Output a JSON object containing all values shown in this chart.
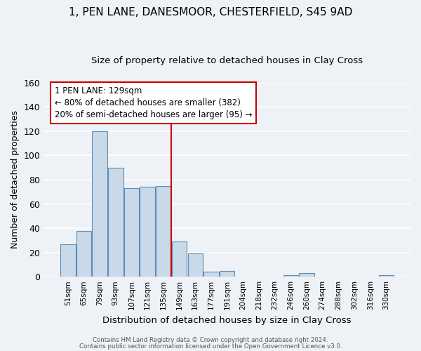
{
  "title": "1, PEN LANE, DANESMOOR, CHESTERFIELD, S45 9AD",
  "subtitle": "Size of property relative to detached houses in Clay Cross",
  "xlabel": "Distribution of detached houses by size in Clay Cross",
  "ylabel": "Number of detached properties",
  "bar_labels": [
    "51sqm",
    "65sqm",
    "79sqm",
    "93sqm",
    "107sqm",
    "121sqm",
    "135sqm",
    "149sqm",
    "163sqm",
    "177sqm",
    "191sqm",
    "204sqm",
    "218sqm",
    "232sqm",
    "246sqm",
    "260sqm",
    "274sqm",
    "288sqm",
    "302sqm",
    "316sqm",
    "330sqm"
  ],
  "bar_values": [
    27,
    38,
    120,
    90,
    73,
    74,
    75,
    29,
    19,
    4,
    5,
    0,
    0,
    0,
    1,
    3,
    0,
    0,
    0,
    0,
    1
  ],
  "bar_color": "#c9d9e8",
  "bar_edge_color": "#5b8db8",
  "ylim": [
    0,
    160
  ],
  "yticks": [
    0,
    20,
    40,
    60,
    80,
    100,
    120,
    140,
    160
  ],
  "vline_x": 6.5,
  "vline_color": "#cc0000",
  "annotation_text": "1 PEN LANE: 129sqm\n← 80% of detached houses are smaller (382)\n20% of semi-detached houses are larger (95) →",
  "annotation_box_color": "#ffffff",
  "annotation_box_edge": "#cc0000",
  "footer1": "Contains HM Land Registry data © Crown copyright and database right 2024.",
  "footer2": "Contains public sector information licensed under the Open Government Licence v3.0.",
  "bg_color": "#eef2f7",
  "grid_color": "#ffffff",
  "title_fontsize": 11,
  "subtitle_fontsize": 9.5,
  "title_fontweight": "normal"
}
